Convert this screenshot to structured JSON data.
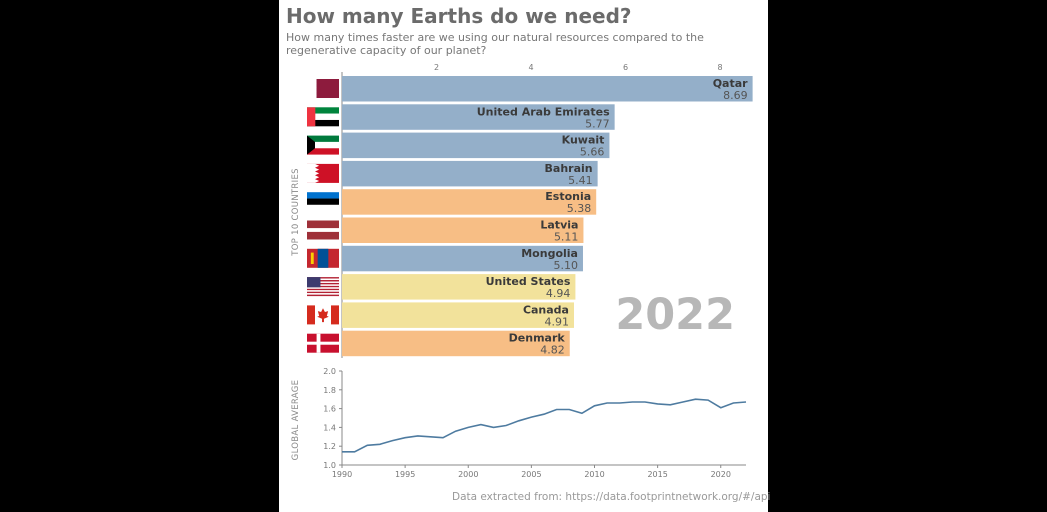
{
  "title": "How many Earths do we need?",
  "subtitle": "How many times faster are we using our natural resources compared to the regenerative capacity of our planet?",
  "source": "Data extracted from: https://data.footprintnetwork.org/#/api",
  "year_label": "2022",
  "colors": {
    "blue": "#94afc9",
    "orange": "#f7be85",
    "yellow": "#f2e29b",
    "line": "#4e7ba0"
  },
  "chart_data": [
    {
      "type": "bar",
      "orientation": "horizontal",
      "ylabel": "TOP 10 COUNTRIES",
      "xticks": [
        2,
        4,
        6,
        8
      ],
      "xlim": [
        0,
        8.7
      ],
      "categories": [
        "Qatar",
        "United Arab Emirates",
        "Kuwait",
        "Bahrain",
        "Estonia",
        "Latvia",
        "Mongolia",
        "United States",
        "Canada",
        "Denmark"
      ],
      "values": [
        8.69,
        5.77,
        5.66,
        5.41,
        5.38,
        5.11,
        5.1,
        4.94,
        4.91,
        4.82
      ],
      "value_labels": [
        "8.69",
        "5.77",
        "5.66",
        "5.41",
        "5.38",
        "5.11",
        "5.10",
        "4.94",
        "4.91",
        "4.82"
      ],
      "bar_colors": [
        "blue",
        "blue",
        "blue",
        "blue",
        "orange",
        "orange",
        "blue",
        "yellow",
        "yellow",
        "orange"
      ],
      "flags": [
        "qatar-flag",
        "uae-flag",
        "kuwait-flag",
        "bahrain-flag",
        "estonia-flag",
        "latvia-flag",
        "mongolia-flag",
        "usa-flag",
        "canada-flag",
        "denmark-flag"
      ]
    },
    {
      "type": "line",
      "ylabel": "GLOBAL AVERAGE",
      "ylim": [
        1.0,
        2.0
      ],
      "yticks": [
        "1.0",
        "1.2",
        "1.4",
        "1.6",
        "1.8",
        "2.0"
      ],
      "xlim": [
        1990,
        2022
      ],
      "xticks": [
        "1990",
        "1995",
        "2000",
        "2005",
        "2010",
        "2015",
        "2020"
      ],
      "x": [
        1990,
        1991,
        1992,
        1993,
        1994,
        1995,
        1996,
        1997,
        1998,
        1999,
        2000,
        2001,
        2002,
        2003,
        2004,
        2005,
        2006,
        2007,
        2008,
        2009,
        2010,
        2011,
        2012,
        2013,
        2014,
        2015,
        2016,
        2017,
        2018,
        2019,
        2020,
        2021,
        2022
      ],
      "y": [
        1.14,
        1.14,
        1.21,
        1.22,
        1.26,
        1.29,
        1.31,
        1.3,
        1.29,
        1.36,
        1.4,
        1.43,
        1.4,
        1.42,
        1.47,
        1.51,
        1.54,
        1.59,
        1.59,
        1.55,
        1.63,
        1.66,
        1.66,
        1.67,
        1.67,
        1.65,
        1.64,
        1.67,
        1.7,
        1.69,
        1.61,
        1.66,
        1.67
      ]
    }
  ]
}
